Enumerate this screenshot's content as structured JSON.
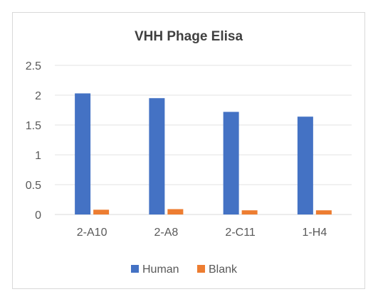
{
  "chart_data": {
    "type": "bar",
    "title": "VHH Phage Elisa",
    "categories": [
      "2-A10",
      "2-A8",
      "2-C11",
      "1-H4"
    ],
    "series": [
      {
        "name": "Human",
        "color": "#4472c4",
        "values": [
          2.03,
          1.95,
          1.72,
          1.64
        ]
      },
      {
        "name": "Blank",
        "color": "#ed7d31",
        "values": [
          0.08,
          0.09,
          0.07,
          0.07
        ]
      }
    ],
    "ylim": [
      0,
      2.5
    ],
    "yticks": [
      "0",
      "0.5",
      "1",
      "1.5",
      "2",
      "2.5"
    ],
    "grid": true,
    "legend": "bottom"
  }
}
